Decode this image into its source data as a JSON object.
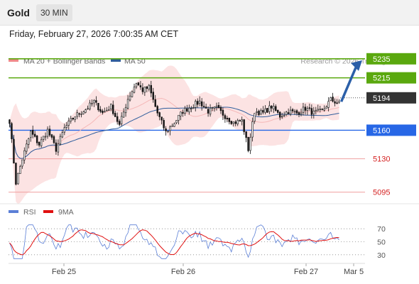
{
  "header": {
    "instrument": "Gold",
    "timeframe": "30 MIN"
  },
  "datetime": "Friday, February 27, 2026 7:00:35 AM CET",
  "credit": "Research © 2026 Trading Central",
  "legend": [
    {
      "label": "MA 20 + Bollinger Bands",
      "color": "#f08a8a"
    },
    {
      "label": "MA 50",
      "color": "#2f5d9c"
    }
  ],
  "rsi_legend": [
    {
      "label": "RSI",
      "color": "#5b7fd6"
    },
    {
      "label": "9MA",
      "color": "#e01010"
    }
  ],
  "colors": {
    "up": "#ffffff",
    "down": "#1a1a1a",
    "target": "#5aa80e",
    "current": "#333333",
    "support": "#2767e6",
    "pivot_line": "#f0a0a0",
    "arrow": "#2b5fa8"
  },
  "chart_data": [
    {
      "type": "candlestick",
      "title": "Gold 30 MIN",
      "ylim": [
        5088,
        5252
      ],
      "x_ticks": [
        "Feb 25",
        "Feb 26",
        "Feb 27",
        "Mar 5"
      ],
      "indicators": [
        "MA 20 + Bollinger Bands",
        "MA 50"
      ],
      "levels": [
        {
          "value": 5235,
          "label": "5235",
          "role": "target"
        },
        {
          "value": 5215,
          "label": "5215",
          "role": "target"
        },
        {
          "value": 5194,
          "label": "5194",
          "role": "current"
        },
        {
          "value": 5160,
          "label": "5160",
          "role": "support"
        },
        {
          "value": 5130,
          "label": "5130",
          "role": "support"
        },
        {
          "value": 5095,
          "label": "5095",
          "role": "support"
        }
      ],
      "path": [
        [
          0,
          5170
        ],
        [
          3,
          5105
        ],
        [
          6,
          5130
        ],
        [
          10,
          5158
        ],
        [
          14,
          5145
        ],
        [
          18,
          5160
        ],
        [
          22,
          5140
        ],
        [
          26,
          5162
        ],
        [
          31,
          5175
        ],
        [
          36,
          5182
        ],
        [
          40,
          5190
        ],
        [
          44,
          5178
        ],
        [
          48,
          5185
        ],
        [
          52,
          5165
        ],
        [
          56,
          5193
        ],
        [
          60,
          5210
        ],
        [
          63,
          5202
        ],
        [
          66,
          5205
        ],
        [
          70,
          5178
        ],
        [
          74,
          5158
        ],
        [
          78,
          5168
        ],
        [
          82,
          5180
        ],
        [
          86,
          5185
        ],
        [
          90,
          5190
        ],
        [
          94,
          5180
        ],
        [
          98,
          5183
        ],
        [
          102,
          5175
        ],
        [
          106,
          5168
        ],
        [
          110,
          5170
        ],
        [
          113,
          5140
        ],
        [
          116,
          5180
        ],
        [
          120,
          5178
        ],
        [
          124,
          5185
        ],
        [
          128,
          5175
        ],
        [
          132,
          5180
        ],
        [
          136,
          5178
        ],
        [
          140,
          5183
        ],
        [
          144,
          5178
        ],
        [
          148,
          5180
        ],
        [
          152,
          5192
        ],
        [
          156,
          5188
        ]
      ]
    },
    {
      "type": "line",
      "title": "RSI",
      "ylim": [
        20,
        80
      ],
      "y_ticks": [
        70,
        50,
        30
      ],
      "series": [
        {
          "name": "RSI"
        },
        {
          "name": "9MA"
        }
      ]
    }
  ]
}
